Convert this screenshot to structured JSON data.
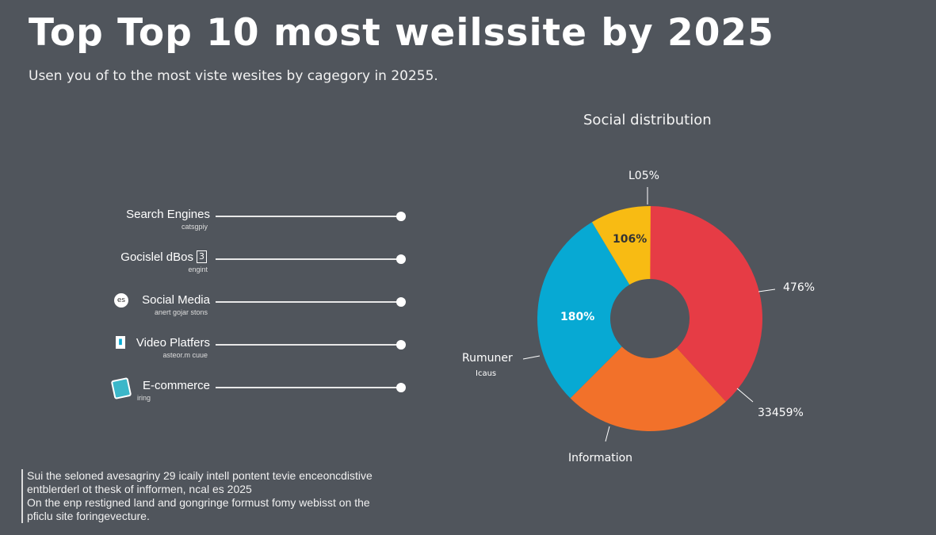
{
  "header": {
    "title": "Top Top 10 most weilssite by 2025",
    "subtitle": "Usen you of to the most viste wesites by cagegory in 20255."
  },
  "categories": [
    {
      "label": "Search Engines",
      "sub": "catsgpiy",
      "icon": "none"
    },
    {
      "label": "Gocislel dBos",
      "sub": "engint",
      "icon": "box-icon"
    },
    {
      "label": "Social Media",
      "sub": "anert gojar stons",
      "icon": "social-icon"
    },
    {
      "label": "Video Platfers",
      "sub": "asteor.m cuue",
      "icon": "video-icon"
    },
    {
      "label": "E-commerce",
      "sub": "iring",
      "icon": "shop-icon"
    }
  ],
  "note": [
    "Sui the seloned avesagriny 29 icaily intell pontent tevie enceoncdistive",
    "entblerderl ot thesk of infformen, ncal es 2025",
    "On the enp restigned land and gongringe formust fomy webisst on the",
    "pficlu site foringevecture."
  ],
  "chart_data": {
    "type": "pie",
    "donut": true,
    "title": "Social distribution",
    "slices": [
      {
        "color": "#e63c45",
        "share_percent": 38.2,
        "labels": [
          "476%",
          "33459%"
        ]
      },
      {
        "color": "#f2712a",
        "share_percent": 24.3,
        "labels": [
          "Information"
        ]
      },
      {
        "color": "#07a9d3",
        "share_percent": 28.9,
        "labels": [
          "180%",
          "Rumuner",
          "Icaus"
        ]
      },
      {
        "color": "#f8bb13",
        "share_percent": 8.7,
        "labels": [
          "106%",
          "L05%"
        ]
      }
    ]
  }
}
